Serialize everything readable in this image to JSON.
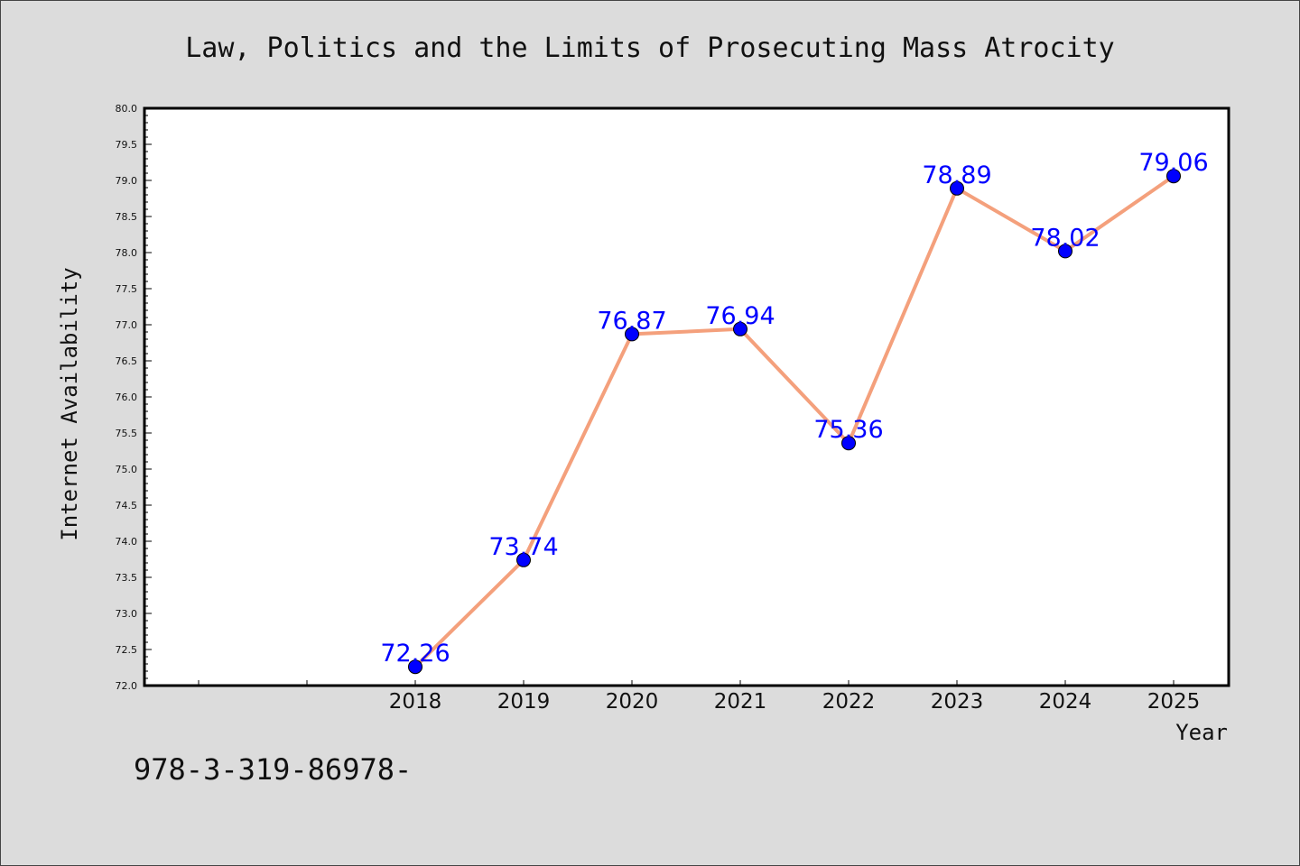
{
  "chart_data": {
    "type": "line",
    "title": "Law, Politics and the Limits of Prosecuting Mass Atrocity",
    "xlabel": "Year",
    "ylabel": "Internet Availability",
    "x": [
      "2018",
      "2019",
      "2020",
      "2021",
      "2022",
      "2023",
      "2024",
      "2025"
    ],
    "series": [
      {
        "values": [
          72.26,
          73.74,
          76.87,
          76.94,
          75.36,
          78.89,
          78.02,
          79.06
        ],
        "data_labels": [
          "72.26",
          "73.74",
          "76.87",
          "76.94",
          "75.36",
          "78.89",
          "78.02",
          "79.06"
        ]
      }
    ],
    "ylim": [
      72.0,
      80.0
    ],
    "yticks": [
      "72.0",
      "72.5",
      "73.0",
      "73.5",
      "74.0",
      "74.5",
      "75.0",
      "75.5",
      "76.0",
      "76.5",
      "77.0",
      "77.5",
      "78.0",
      "78.5",
      "79.0",
      "79.5",
      "80.0"
    ],
    "grid": false,
    "line_color": "#f4a07c",
    "marker_color": "#0000ff",
    "label_color": "#0000ff"
  },
  "footer_text": "978-3-319-86978-"
}
